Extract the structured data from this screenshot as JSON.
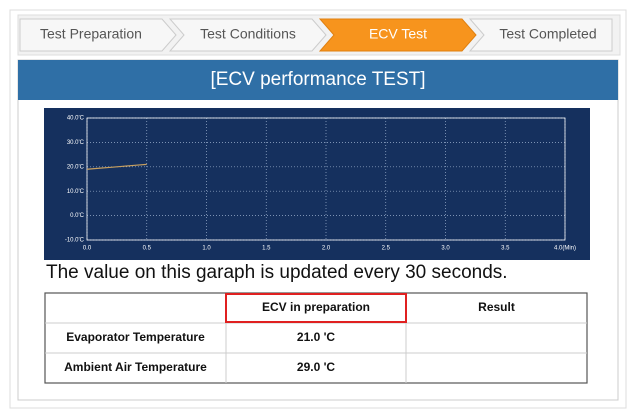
{
  "steps": [
    "Test Preparation",
    "Test Conditions",
    "ECV Test",
    "Test Completed"
  ],
  "active_step": 2,
  "panel_title": "[ECV performance TEST]",
  "chart_data": {
    "type": "line",
    "x": [
      0,
      0.1,
      0.2,
      0.3,
      0.4,
      0.5
    ],
    "series": [
      {
        "color": "#c8a060",
        "values": [
          19,
          19.4,
          19.8,
          20.2,
          20.6,
          21
        ]
      }
    ],
    "xlim": [
      0,
      4
    ],
    "ylim": [
      -10,
      40
    ],
    "xticks": [
      {
        "value": 0,
        "label": "0.0"
      },
      0.5,
      {
        "value": 1,
        "label": "1.0"
      },
      1.5,
      {
        "value": 2,
        "label": "2.0"
      },
      2.5,
      {
        "value": 3,
        "label": "3.0"
      },
      3.5,
      {
        "value": 4,
        "label": "4.0(Min)"
      }
    ],
    "yticks": [
      {
        "value": -10,
        "label": "-10.0'C"
      },
      {
        "value": 0,
        "label": "0.0'C"
      },
      {
        "value": 10,
        "label": "10.0'C"
      },
      {
        "value": 20,
        "label": "20.0'C"
      },
      {
        "value": 30,
        "label": "30.0'C"
      },
      {
        "value": 40,
        "label": "40.0'C"
      }
    ],
    "grid": true
  },
  "caption": "The value on this garaph is updated every 30 seconds.",
  "table": {
    "headers": [
      "ECV in preparation",
      "Result"
    ],
    "rows": [
      {
        "label": "Evaporator Temperature",
        "value": "21.0 'C"
      },
      {
        "label": "Ambient Air Temperature",
        "value": "29.0 'C"
      }
    ]
  }
}
